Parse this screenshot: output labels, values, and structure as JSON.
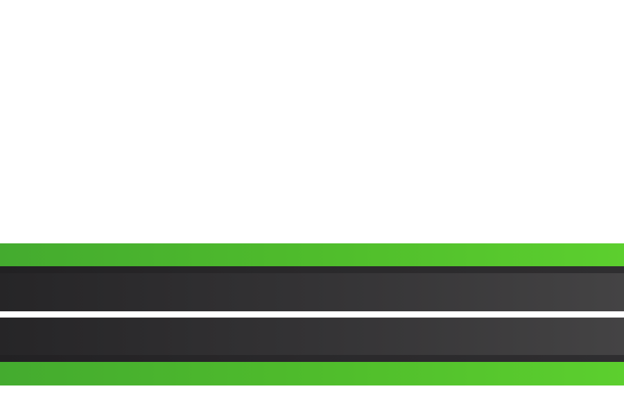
{
  "colors": {
    "background": "#ffffff",
    "green_start": "#44ab2f",
    "green_end": "#5ccf2e",
    "dark_start": "#262527",
    "dark_end": "#444344",
    "dark_rim": "#222123"
  }
}
